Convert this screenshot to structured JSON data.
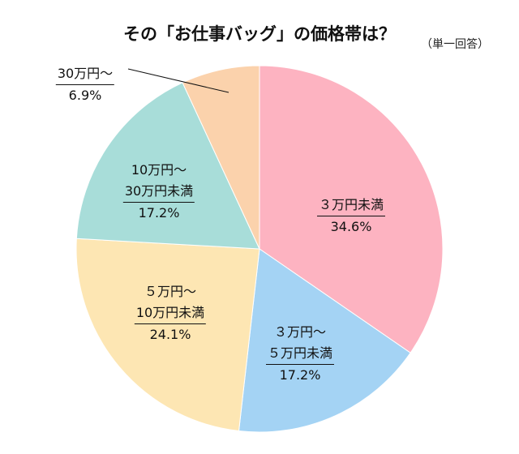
{
  "chart_data": {
    "type": "pie",
    "title": "その「お仕事バッグ」の価格帯は？",
    "subtitle": "（単一回答）",
    "start": "top",
    "direction": "clockwise",
    "slices": [
      {
        "label": [
          "３万円未満"
        ],
        "value": 34.6,
        "display": "34.6%",
        "color": "#FDB3C1"
      },
      {
        "label": [
          "３万円〜",
          "５万円未満"
        ],
        "value": 17.2,
        "display": "17.2%",
        "color": "#A4D3F4"
      },
      {
        "label": [
          "５万円〜",
          "10万円未満"
        ],
        "value": 24.1,
        "display": "24.1%",
        "color": "#FDE6B3"
      },
      {
        "label": [
          "10万円〜",
          "30万円未満"
        ],
        "value": 17.2,
        "display": "17.2%",
        "color": "#A8DDD9"
      },
      {
        "label": [
          "30万円〜"
        ],
        "value": 6.9,
        "display": "6.9%",
        "color": "#FBD2AC"
      }
    ]
  }
}
